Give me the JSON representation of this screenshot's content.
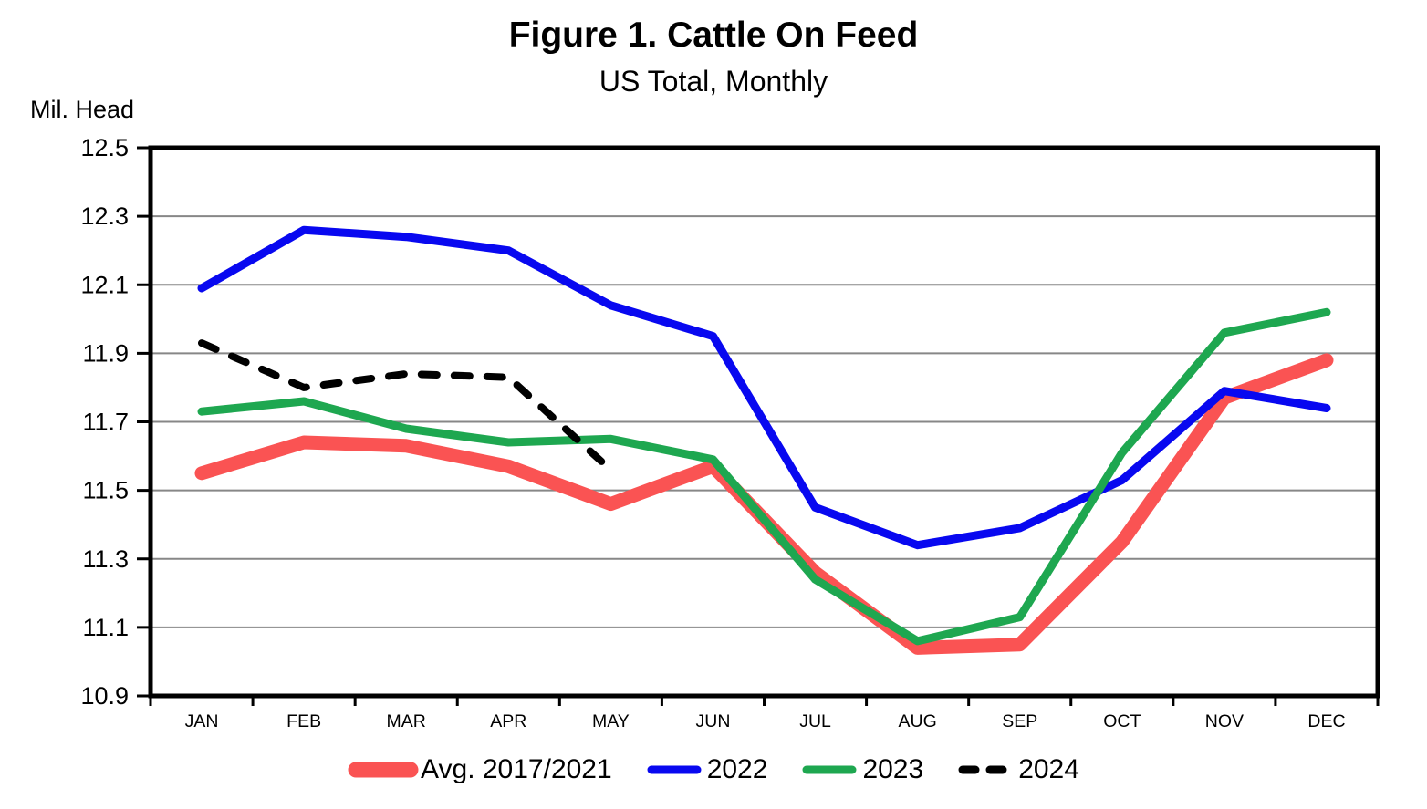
{
  "page": {
    "background": "#FFFFFF"
  },
  "chart_data": {
    "type": "line",
    "title": "Figure 1. Cattle On Feed",
    "subtitle": "US Total, Monthly",
    "ylabel": "Mil. Head",
    "categories": [
      "JAN",
      "FEB",
      "MAR",
      "APR",
      "MAY",
      "JUN",
      "JUL",
      "AUG",
      "SEP",
      "OCT",
      "NOV",
      "DEC"
    ],
    "ylim": [
      10.9,
      12.5
    ],
    "ytick_step": 0.2,
    "ytick_labels": [
      "12.5",
      "12.3",
      "12.1",
      "11.9",
      "11.7",
      "11.5",
      "11.3",
      "11.1",
      "10.9"
    ],
    "grid": "horizontal-only",
    "gridline_color": "#878787",
    "axis_color": "#000000",
    "legend_position": "bottom",
    "series": [
      {
        "name": "Avg. 2017/2021",
        "color": "#FA5353",
        "style": "solid",
        "width": 15,
        "values": [
          11.55,
          11.64,
          11.63,
          11.57,
          11.46,
          11.57,
          11.26,
          11.04,
          11.05,
          11.35,
          11.77,
          11.88
        ]
      },
      {
        "name": "2022",
        "color": "#0808F0",
        "style": "solid",
        "width": 9,
        "values": [
          12.09,
          12.26,
          12.24,
          12.2,
          12.04,
          11.95,
          11.45,
          11.34,
          11.39,
          11.53,
          11.79,
          11.74
        ]
      },
      {
        "name": "2023",
        "color": "#1EA750",
        "style": "solid",
        "width": 9,
        "values": [
          11.73,
          11.76,
          11.68,
          11.64,
          11.65,
          11.59,
          11.24,
          11.06,
          11.13,
          11.61,
          11.96,
          12.02
        ]
      },
      {
        "name": "2024",
        "color": "#000000",
        "style": "dashed",
        "width": 8,
        "values": [
          11.93,
          11.8,
          11.84,
          11.83,
          11.56,
          null,
          null,
          null,
          null,
          null,
          null,
          null
        ]
      }
    ]
  }
}
